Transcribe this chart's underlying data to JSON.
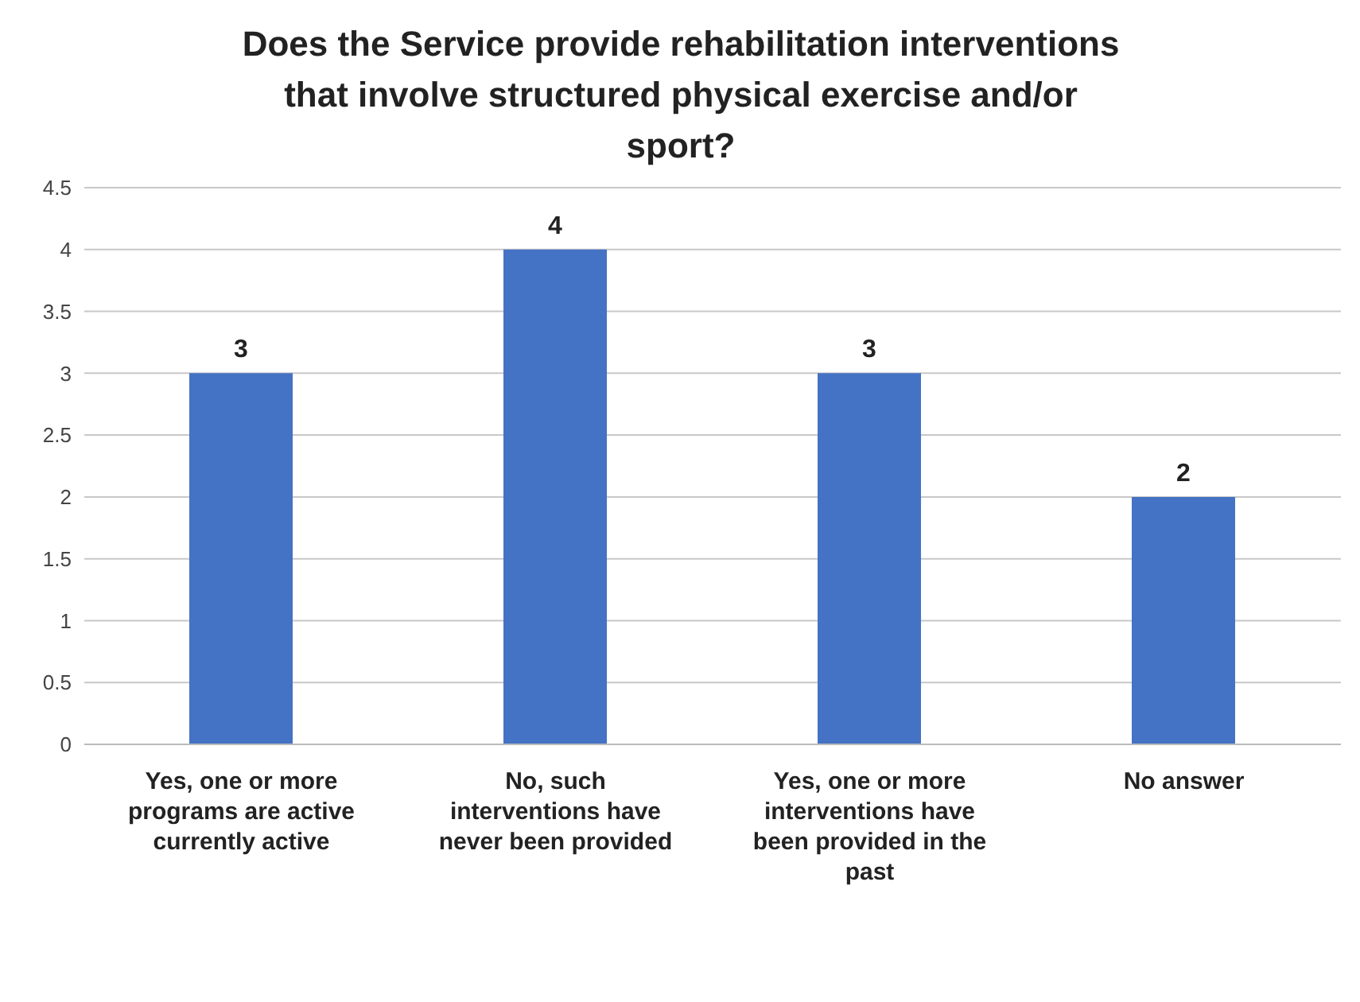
{
  "chart_data": {
    "type": "bar",
    "title": "Does the Service provide rehabilitation interventions that involve structured physical exercise and/or sport?",
    "categories": [
      "Yes, one or more programs are active currently active",
      "No, such interventions have never been provided",
      "Yes, one or more interventions have been provided in the past",
      "No answer"
    ],
    "values": [
      3,
      4,
      3,
      2
    ],
    "color": "#4472c4",
    "ylim": [
      0,
      4.5
    ],
    "yticks": [
      0,
      0.5,
      1,
      1.5,
      2,
      2.5,
      3,
      3.5,
      4,
      4.5
    ],
    "grid": "y",
    "data_labels": true
  }
}
